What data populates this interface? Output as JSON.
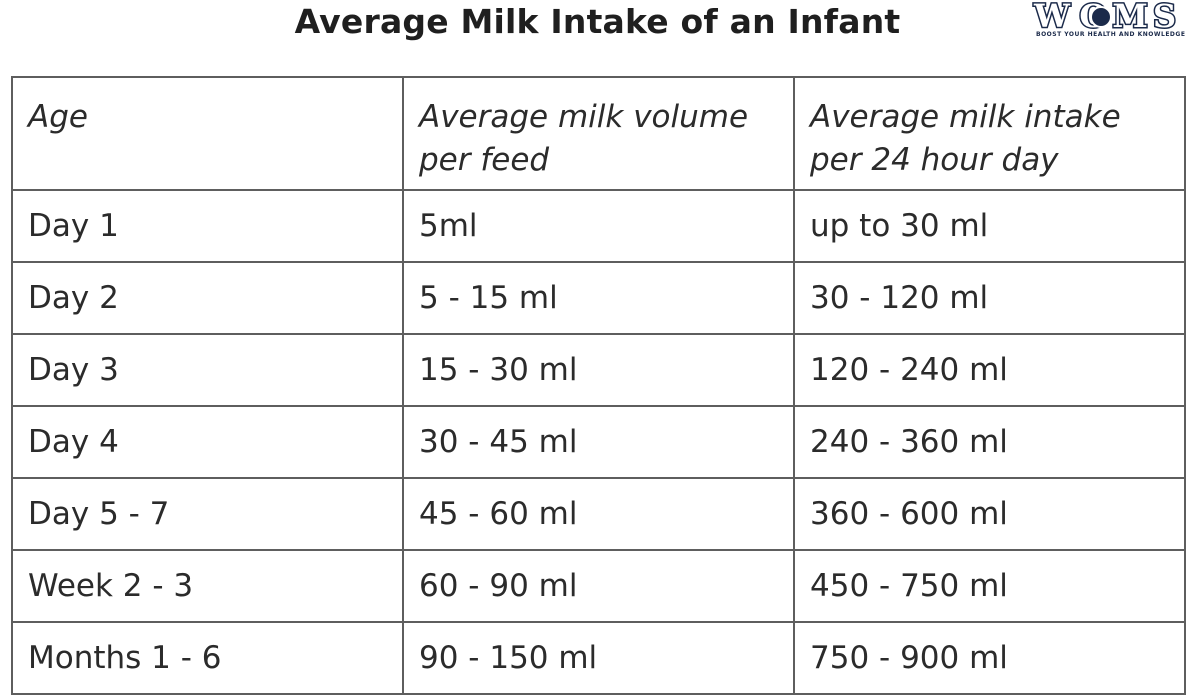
{
  "title": "Average Milk Intake of an Infant",
  "logo": {
    "text": "WOMS",
    "tagline": "BOOST YOUR HEALTH AND KNOWLEDGE",
    "color": "#1b2a4a"
  },
  "table": {
    "headers": [
      [
        "Age"
      ],
      [
        "Average milk volume",
        "per feed"
      ],
      [
        "Average milk intake",
        "per 24 hour day"
      ]
    ],
    "rows": [
      [
        "Day 1",
        "5ml",
        "up to 30 ml"
      ],
      [
        "Day 2",
        "5 - 15 ml",
        "30 - 120 ml"
      ],
      [
        "Day 3",
        "15 - 30 ml",
        "120 - 240 ml"
      ],
      [
        "Day 4",
        "30 - 45 ml",
        "240 - 360 ml"
      ],
      [
        "Day 5 - 7",
        "45 - 60 ml",
        "360 - 600 ml"
      ],
      [
        "Week 2 - 3",
        "60 - 90 ml",
        "450 - 750 ml"
      ],
      [
        "Months 1 - 6",
        "90 - 150 ml",
        "750 - 900 ml"
      ]
    ]
  }
}
